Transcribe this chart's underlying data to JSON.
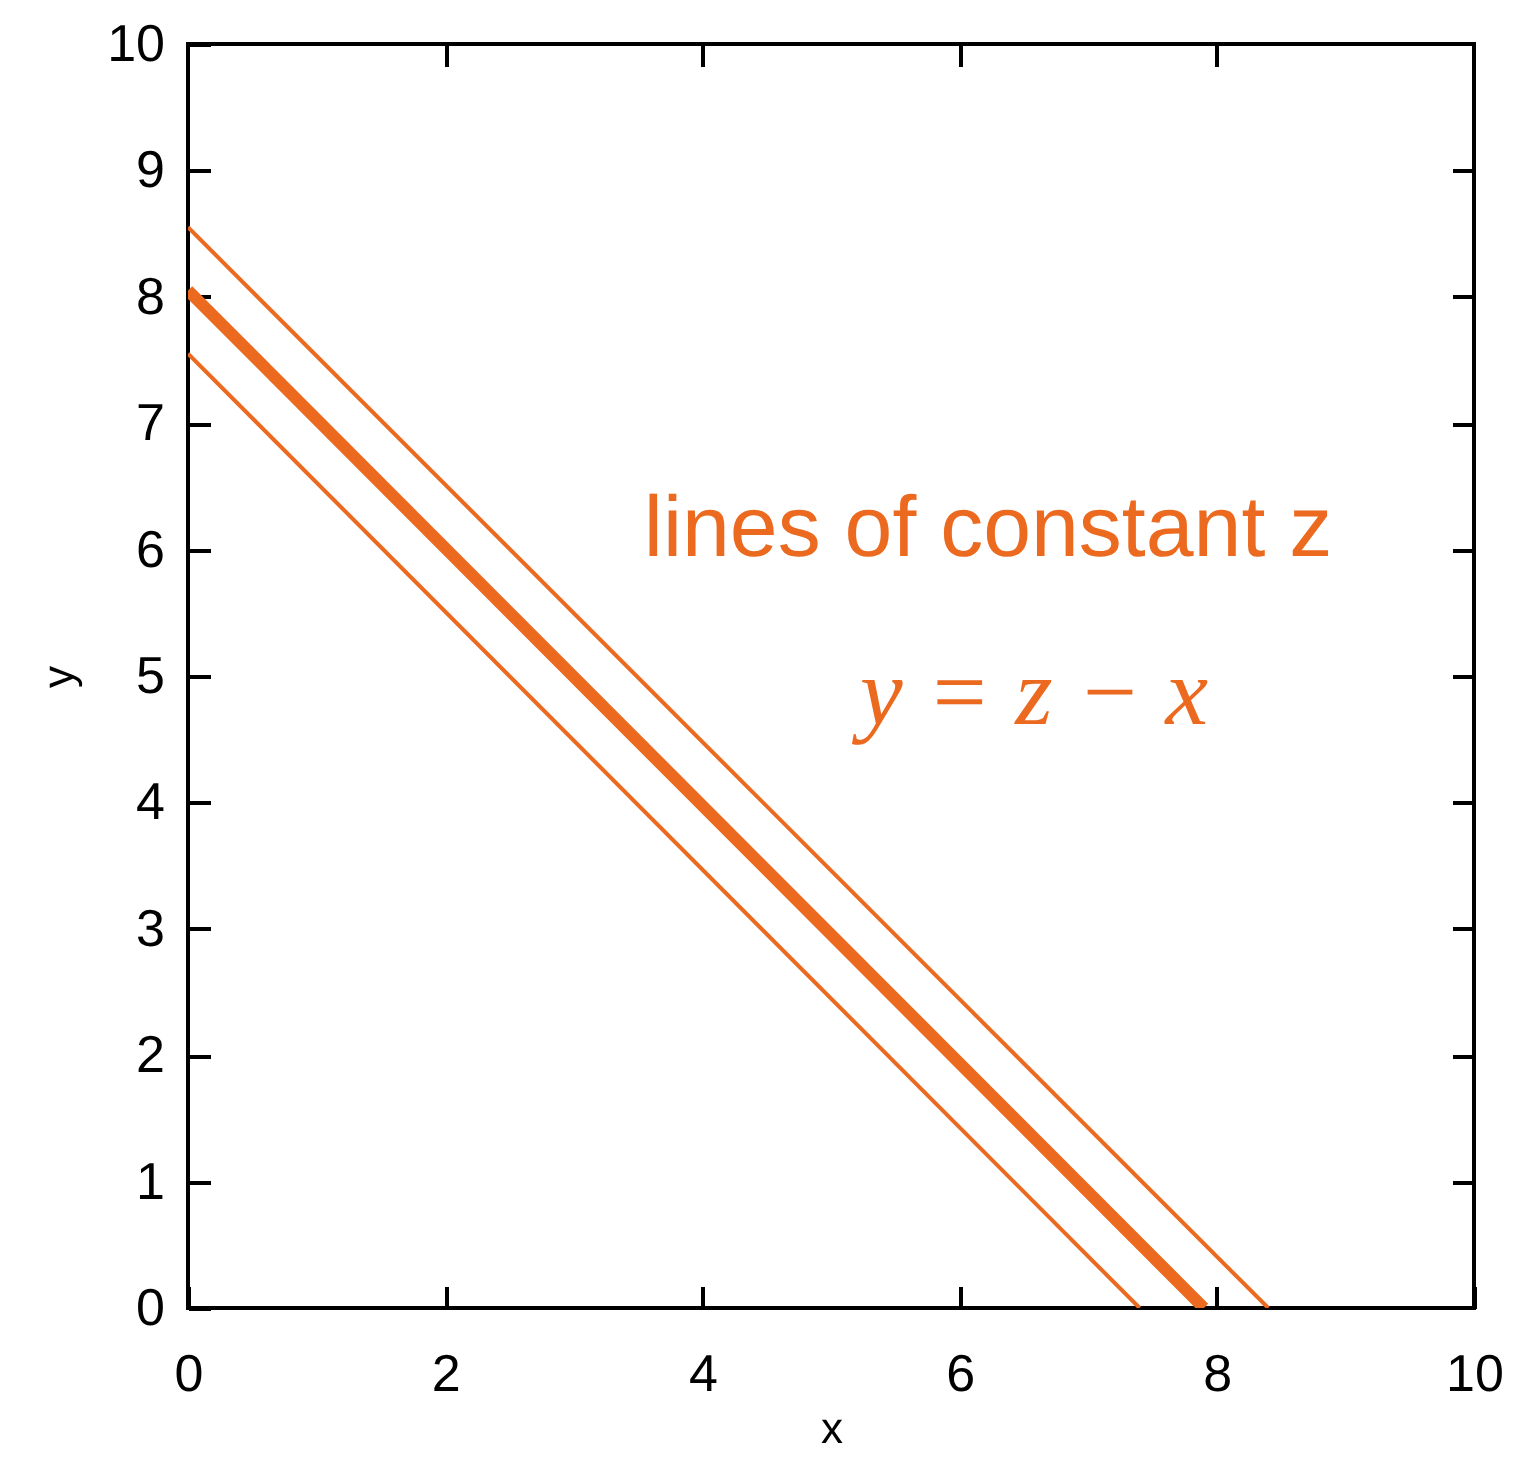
{
  "chart_data": {
    "type": "line",
    "xlabel": "x",
    "ylabel": "y",
    "xlim": [
      0,
      10
    ],
    "ylim": [
      0,
      10
    ],
    "xticks": [
      0,
      2,
      4,
      6,
      8,
      10
    ],
    "yticks": [
      0,
      1,
      2,
      3,
      4,
      5,
      6,
      7,
      8,
      9,
      10
    ],
    "grid": false,
    "marker": "none",
    "line_style": "solid",
    "annotations": [
      "lines of constant z",
      "y = z − x"
    ],
    "series": [
      {
        "color": "#ec6a1f",
        "x": [
          0,
          8.4
        ],
        "values": [
          8.55,
          0
        ]
      },
      {
        "color": "#ec6a1f",
        "x": [
          0,
          7.9
        ],
        "values": [
          8.05,
          0
        ]
      },
      {
        "color": "#ec6a1f",
        "x": [
          0,
          7.4
        ],
        "values": [
          7.55,
          0
        ]
      }
    ]
  }
}
